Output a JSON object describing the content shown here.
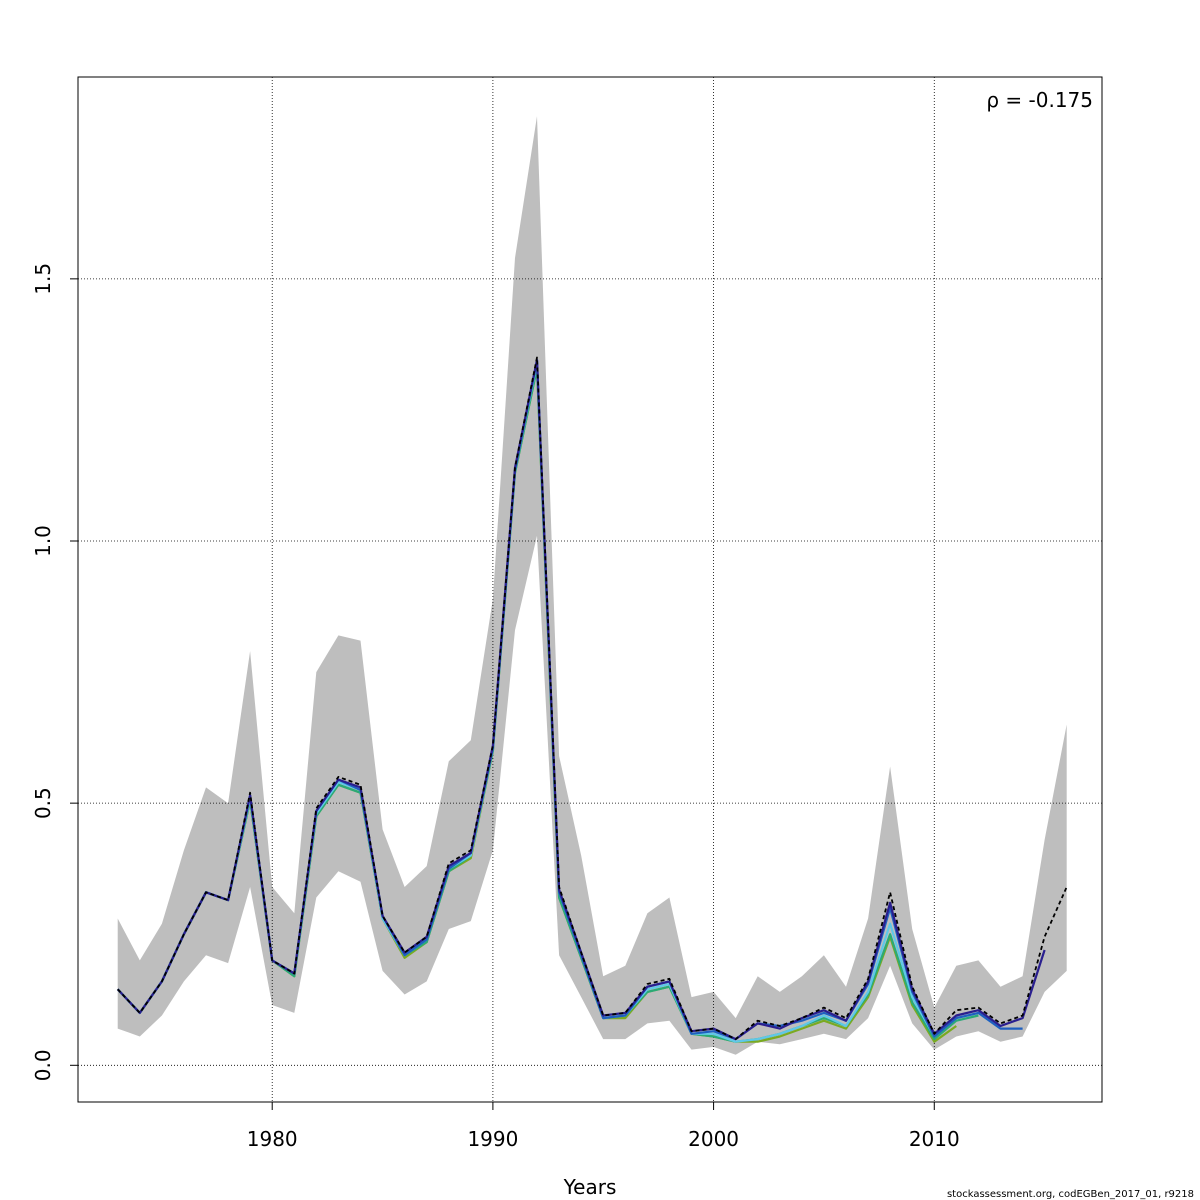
{
  "chart_data": {
    "type": "line",
    "xlabel": "Years",
    "ylabel": "",
    "xlim": [
      1971.2,
      2017.6
    ],
    "ylim": [
      -0.07,
      1.885
    ],
    "x_ticks": [
      1980,
      1990,
      2000,
      2010
    ],
    "x_tick_labels": [
      "1980",
      "1990",
      "2000",
      "2010"
    ],
    "y_ticks": [
      0.0,
      0.5,
      1.0,
      1.5
    ],
    "y_tick_labels": [
      "0.0",
      "0.5",
      "1.0",
      "1.5"
    ],
    "grid": true,
    "annotation": "ρ = -0.175",
    "credit": "stockassessment.org, codEGBen_2017_01, r9218",
    "colors": {
      "band": "#bebebe",
      "base": "#000000",
      "peels": [
        "#2a1f8f",
        "#1f5fbf",
        "#5fc8e8",
        "#2aaa77",
        "#7aaa22"
      ]
    },
    "band": {
      "x": [
        1973,
        1974,
        1975,
        1976,
        1977,
        1978,
        1979,
        1980,
        1981,
        1982,
        1983,
        1984,
        1985,
        1986,
        1987,
        1988,
        1989,
        1990,
        1991,
        1992,
        1993,
        1994,
        1995,
        1996,
        1997,
        1998,
        1999,
        2000,
        2001,
        2002,
        2003,
        2004,
        2005,
        2006,
        2007,
        2008,
        2009,
        2010,
        2011,
        2012,
        2013,
        2014,
        2015,
        2016
      ],
      "upper": [
        0.28,
        0.2,
        0.27,
        0.41,
        0.53,
        0.5,
        0.79,
        0.34,
        0.29,
        0.75,
        0.82,
        0.81,
        0.45,
        0.34,
        0.38,
        0.58,
        0.62,
        0.89,
        1.54,
        1.81,
        0.59,
        0.4,
        0.17,
        0.19,
        0.29,
        0.32,
        0.13,
        0.14,
        0.09,
        0.17,
        0.14,
        0.17,
        0.21,
        0.15,
        0.28,
        0.57,
        0.26,
        0.11,
        0.19,
        0.2,
        0.15,
        0.17,
        0.43,
        0.65
      ],
      "lower": [
        0.07,
        0.055,
        0.095,
        0.16,
        0.21,
        0.195,
        0.34,
        0.115,
        0.1,
        0.32,
        0.37,
        0.35,
        0.18,
        0.135,
        0.16,
        0.26,
        0.275,
        0.41,
        0.83,
        1.01,
        0.21,
        0.13,
        0.05,
        0.05,
        0.08,
        0.085,
        0.03,
        0.035,
        0.02,
        0.045,
        0.04,
        0.05,
        0.06,
        0.05,
        0.09,
        0.19,
        0.08,
        0.03,
        0.055,
        0.065,
        0.045,
        0.055,
        0.14,
        0.18
      ]
    },
    "series": [
      {
        "x": [
          1973,
          1974,
          1975,
          1976,
          1977,
          1978,
          1979,
          1980,
          1981,
          1982,
          1983,
          1984,
          1985,
          1986,
          1987,
          1988,
          1989,
          1990,
          1991,
          1992,
          1993,
          1994,
          1995,
          1996,
          1997,
          1998,
          1999,
          2000,
          2001,
          2002,
          2003,
          2004,
          2005,
          2006,
          2007,
          2008,
          2009,
          2010,
          2011,
          2012,
          2013,
          2014,
          2015,
          2016
        ],
        "values": [
          0.145,
          0.1,
          0.16,
          0.25,
          0.33,
          0.315,
          0.52,
          0.2,
          0.175,
          0.49,
          0.55,
          0.535,
          0.285,
          0.215,
          0.245,
          0.385,
          0.41,
          0.61,
          1.14,
          1.35,
          0.34,
          0.215,
          0.095,
          0.1,
          0.155,
          0.165,
          0.065,
          0.07,
          0.05,
          0.085,
          0.075,
          0.09,
          0.11,
          0.09,
          0.165,
          0.33,
          0.15,
          0.06,
          0.105,
          0.11,
          0.08,
          0.095,
          0.245,
          0.34
        ]
      },
      {
        "x": [
          1973,
          1974,
          1975,
          1976,
          1977,
          1978,
          1979,
          1980,
          1981,
          1982,
          1983,
          1984,
          1985,
          1986,
          1987,
          1988,
          1989,
          1990,
          1991,
          1992,
          1993,
          1994,
          1995,
          1996,
          1997,
          1998,
          1999,
          2000,
          2001,
          2002,
          2003,
          2004,
          2005,
          2006,
          2007,
          2008,
          2009,
          2010,
          2011,
          2012,
          2013,
          2014,
          2015
        ],
        "values": [
          0.145,
          0.1,
          0.16,
          0.25,
          0.33,
          0.315,
          0.515,
          0.2,
          0.175,
          0.485,
          0.545,
          0.53,
          0.285,
          0.215,
          0.245,
          0.38,
          0.405,
          0.61,
          1.14,
          1.345,
          0.335,
          0.215,
          0.095,
          0.1,
          0.15,
          0.16,
          0.065,
          0.07,
          0.05,
          0.08,
          0.07,
          0.09,
          0.105,
          0.085,
          0.16,
          0.31,
          0.145,
          0.06,
          0.095,
          0.105,
          0.075,
          0.09,
          0.22
        ]
      },
      {
        "x": [
          1973,
          1974,
          1975,
          1976,
          1977,
          1978,
          1979,
          1980,
          1981,
          1982,
          1983,
          1984,
          1985,
          1986,
          1987,
          1988,
          1989,
          1990,
          1991,
          1992,
          1993,
          1994,
          1995,
          1996,
          1997,
          1998,
          1999,
          2000,
          2001,
          2002,
          2003,
          2004,
          2005,
          2006,
          2007,
          2008,
          2009,
          2010,
          2011,
          2012,
          2013,
          2014
        ],
        "values": [
          0.145,
          0.1,
          0.16,
          0.25,
          0.33,
          0.315,
          0.515,
          0.2,
          0.175,
          0.485,
          0.545,
          0.525,
          0.285,
          0.21,
          0.24,
          0.375,
          0.405,
          0.605,
          1.135,
          1.345,
          0.33,
          0.21,
          0.09,
          0.095,
          0.15,
          0.16,
          0.06,
          0.065,
          0.05,
          0.08,
          0.075,
          0.085,
          0.1,
          0.085,
          0.155,
          0.3,
          0.14,
          0.055,
          0.09,
          0.1,
          0.07,
          0.07
        ]
      },
      {
        "x": [
          1973,
          1974,
          1975,
          1976,
          1977,
          1978,
          1979,
          1980,
          1981,
          1982,
          1983,
          1984,
          1985,
          1986,
          1987,
          1988,
          1989,
          1990,
          1991,
          1992,
          1993,
          1994,
          1995,
          1996,
          1997,
          1998,
          1999,
          2000,
          2001,
          2002,
          2003,
          2004,
          2005,
          2006,
          2007,
          2008,
          2009,
          2010,
          2011,
          2012,
          2013
        ],
        "values": [
          0.145,
          0.1,
          0.16,
          0.25,
          0.33,
          0.315,
          0.51,
          0.2,
          0.175,
          0.48,
          0.54,
          0.525,
          0.28,
          0.21,
          0.24,
          0.375,
          0.4,
          0.605,
          1.135,
          1.34,
          0.33,
          0.21,
          0.09,
          0.095,
          0.145,
          0.155,
          0.06,
          0.06,
          0.045,
          0.05,
          0.06,
          0.075,
          0.095,
          0.075,
          0.14,
          0.27,
          0.13,
          0.055,
          0.09,
          0.1,
          0.07
        ]
      },
      {
        "x": [
          1973,
          1974,
          1975,
          1976,
          1977,
          1978,
          1979,
          1980,
          1981,
          1982,
          1983,
          1984,
          1985,
          1986,
          1987,
          1988,
          1989,
          1990,
          1991,
          1992,
          1993,
          1994,
          1995,
          1996,
          1997,
          1998,
          1999,
          2000,
          2001,
          2002,
          2003,
          2004,
          2005,
          2006,
          2007,
          2008,
          2009,
          2010,
          2011,
          2012
        ],
        "values": [
          0.145,
          0.1,
          0.16,
          0.25,
          0.33,
          0.315,
          0.505,
          0.2,
          0.17,
          0.475,
          0.535,
          0.52,
          0.28,
          0.21,
          0.235,
          0.37,
          0.4,
          0.6,
          1.13,
          1.33,
          0.32,
          0.205,
          0.09,
          0.095,
          0.14,
          0.15,
          0.06,
          0.055,
          0.045,
          0.05,
          0.06,
          0.075,
          0.09,
          0.075,
          0.135,
          0.25,
          0.12,
          0.05,
          0.085,
          0.095
        ]
      },
      {
        "x": [
          1973,
          1974,
          1975,
          1976,
          1977,
          1978,
          1979,
          1980,
          1981,
          1982,
          1983,
          1984,
          1985,
          1986,
          1987,
          1988,
          1989,
          1990,
          1991,
          1992,
          1993,
          1994,
          1995,
          1996,
          1997,
          1998,
          1999,
          2000,
          2001,
          2002,
          2003,
          2004,
          2005,
          2006,
          2007,
          2008,
          2009,
          2010,
          2011
        ],
        "values": [
          0.145,
          0.1,
          0.16,
          0.25,
          0.33,
          0.315,
          0.505,
          0.2,
          0.17,
          0.475,
          0.535,
          0.52,
          0.28,
          0.205,
          0.235,
          0.37,
          0.395,
          0.6,
          1.13,
          1.33,
          0.32,
          0.205,
          0.09,
          0.09,
          0.14,
          0.15,
          0.06,
          0.055,
          0.045,
          0.045,
          0.055,
          0.07,
          0.085,
          0.07,
          0.13,
          0.245,
          0.115,
          0.045,
          0.075
        ]
      }
    ]
  }
}
